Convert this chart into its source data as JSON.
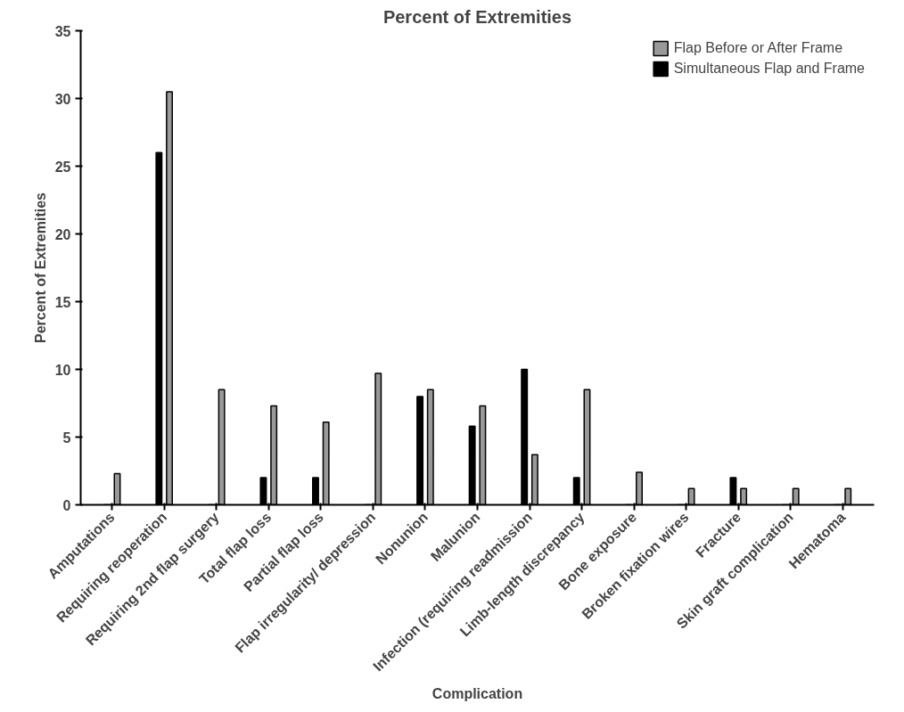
{
  "chart_data": {
    "type": "bar",
    "title": "Percent of Extremities",
    "xlabel": "Complication",
    "ylabel": "Percent of Extremities",
    "categories": [
      "Amputations",
      "Requiring reoperation",
      "Requiring 2nd flap surgery",
      "Total flap loss",
      "Partial flap loss",
      "Flap irregularity/ depression",
      "Nonunion",
      "Malunion",
      "Infection (requiring readmission",
      "Limb-length discrepancy",
      "Bone exposure",
      "Broken fixation wires",
      "Fracture",
      "Skin graft complication",
      "Hematoma"
    ],
    "series": [
      {
        "name": "Simultaneous Flap and Frame",
        "color": "#000000",
        "values": [
          0,
          26,
          0,
          2,
          2,
          0,
          8,
          5.8,
          10,
          2,
          0,
          0,
          2,
          0,
          0
        ]
      },
      {
        "name": "Flap Before or After Frame",
        "color": "#999999",
        "values": [
          2.3,
          30.5,
          8.5,
          7.3,
          6.1,
          9.7,
          8.5,
          7.3,
          3.7,
          8.5,
          2.4,
          1.2,
          1.2,
          1.2,
          1.2
        ]
      }
    ],
    "ylim": [
      0,
      35
    ],
    "yticks": [
      0,
      5,
      10,
      15,
      20,
      25,
      30,
      35
    ],
    "grid": false,
    "legend": "top right"
  }
}
